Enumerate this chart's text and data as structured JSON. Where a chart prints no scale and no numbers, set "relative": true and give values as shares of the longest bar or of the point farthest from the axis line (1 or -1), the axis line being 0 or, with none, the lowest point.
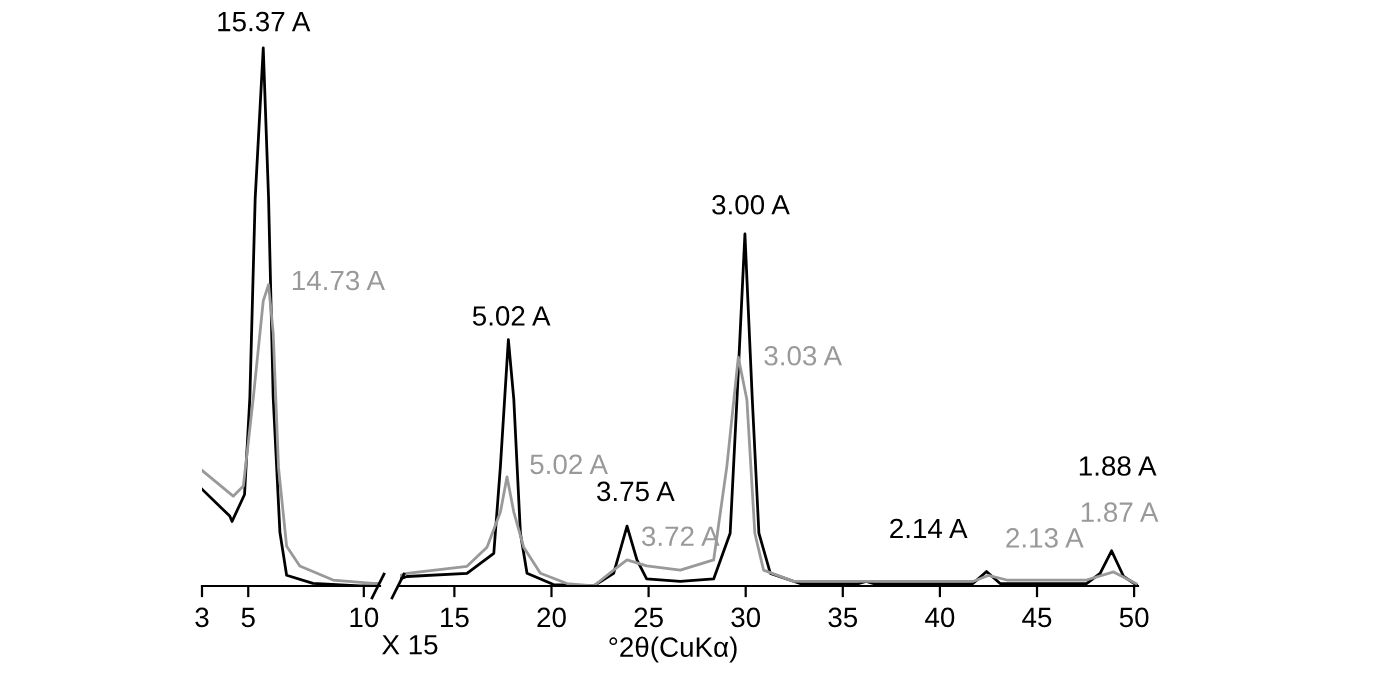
{
  "chart_data": [
    {
      "type": "line",
      "relative": true,
      "xlim": [
        3,
        10.7
      ],
      "xticks": [
        3,
        5,
        10
      ],
      "series": [
        {
          "color": "#000000",
          "x": [
            3,
            4.2,
            4.3,
            4.84,
            5.07,
            5.3,
            5.65,
            5.88,
            6.08,
            6.37,
            6.66,
            7.8,
            9.83,
            10.7
          ],
          "values": [
            0.18,
            0.13,
            0.12,
            0.17,
            0.35,
            0.72,
            1.0,
            0.72,
            0.35,
            0.1,
            0.02,
            0.005,
            0,
            0
          ]
        },
        {
          "color": "#999999",
          "x": [
            3,
            4.35,
            4.79,
            5.22,
            5.65,
            5.88,
            6.08,
            6.31,
            6.66,
            7.23,
            8.67,
            10.4,
            10.7
          ],
          "values": [
            0.215,
            0.167,
            0.186,
            0.35,
            0.53,
            0.56,
            0.47,
            0.22,
            0.074,
            0.037,
            0.011,
            0.005,
            0.005
          ]
        }
      ],
      "annotations": [
        {
          "text": "15.37 A",
          "x": 5.65,
          "y": 1.0
        },
        {
          "text": "14.73 A",
          "x": 5.88,
          "y": 0.56
        }
      ]
    },
    {
      "type": "line",
      "relative": true,
      "xlim": [
        12.2,
        50.2
      ],
      "xticks": [
        15,
        20,
        25,
        30,
        35,
        40,
        45,
        50
      ],
      "xlabel": "°2θ(CuKα)",
      "series": [
        {
          "color": "#000000",
          "x": [
            12.2,
            12.56,
            15.65,
            17.03,
            17.37,
            17.78,
            18.06,
            18.4,
            18.74,
            20.1,
            22.17,
            23.2,
            23.89,
            24.4,
            24.9,
            26.63,
            28.35,
            29.2,
            29.55,
            29.96,
            30.34,
            30.68,
            31.27,
            32.8,
            35.8,
            36.2,
            36.6,
            41.7,
            42.4,
            43.1,
            47.55,
            48.25,
            48.84,
            49.46,
            50.2
          ],
          "values": [
            0.02,
            0.027,
            0.036,
            0.093,
            0.34,
            0.7,
            0.53,
            0.15,
            0.036,
            0.004,
            0,
            0.036,
            0.17,
            0.074,
            0.02,
            0.013,
            0.02,
            0.15,
            0.53,
            1.0,
            0.53,
            0.15,
            0.036,
            0.007,
            0.007,
            0.013,
            0.007,
            0.007,
            0.041,
            0.007,
            0.007,
            0.036,
            0.1,
            0.027,
            0
          ]
        },
        {
          "color": "#999999",
          "x": [
            12.2,
            12.56,
            15.65,
            16.68,
            17.37,
            17.71,
            18.06,
            18.57,
            19.43,
            20.8,
            22.17,
            23.2,
            23.89,
            24.9,
            26.63,
            28.35,
            29.03,
            29.62,
            30.06,
            30.47,
            30.92,
            32.47,
            41.7,
            42.49,
            43.45,
            47.55,
            48.94,
            50.1
          ],
          "values": [
            0.03,
            0.036,
            0.056,
            0.11,
            0.21,
            0.31,
            0.21,
            0.11,
            0.036,
            0.007,
            0,
            0.045,
            0.074,
            0.057,
            0.045,
            0.074,
            0.34,
            0.65,
            0.53,
            0.15,
            0.045,
            0.013,
            0.013,
            0.03,
            0.017,
            0.017,
            0.04,
            0.007
          ]
        }
      ],
      "annotations": [
        "X 15",
        {
          "text": "5.02 A",
          "x": 17.78,
          "y": 0.7
        },
        {
          "text": "5.02 A",
          "x": 17.71,
          "y": 0.31
        },
        {
          "text": "3.75 A",
          "x": 23.89,
          "y": 0.17
        },
        {
          "text": "3.72 A",
          "x": 23.89,
          "y": 0.074
        },
        {
          "text": "3.00 A",
          "x": 29.96,
          "y": 1.0
        },
        {
          "text": "3.03 A",
          "x": 29.62,
          "y": 0.65
        },
        {
          "text": "2.14 A",
          "x": 42.4,
          "y": 0.041
        },
        {
          "text": "2.13 A",
          "x": 42.49,
          "y": 0.03
        },
        {
          "text": "1.88 A",
          "x": 48.84,
          "y": 0.1
        },
        {
          "text": "1.87 A",
          "x": 48.94,
          "y": 0.04
        }
      ]
    }
  ]
}
